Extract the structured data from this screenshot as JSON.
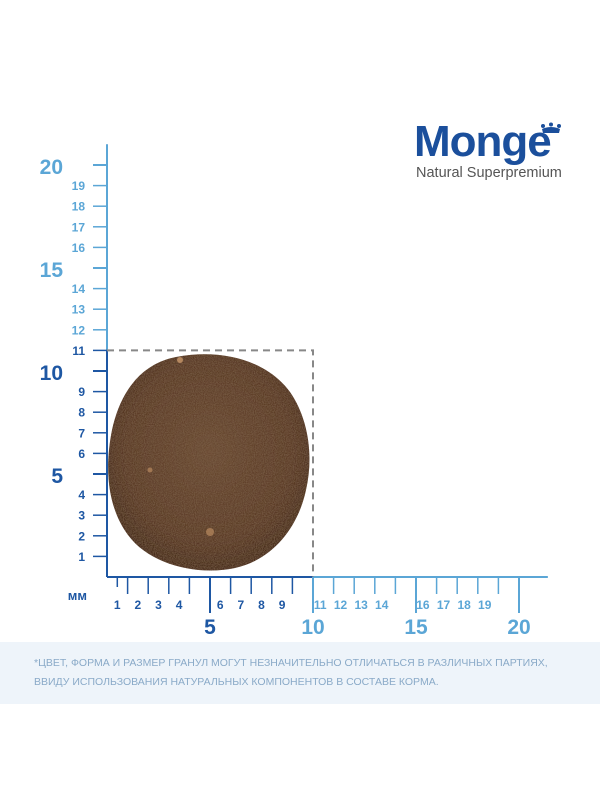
{
  "brand": {
    "name": "Monge",
    "tagline": "Natural Superpremium",
    "color": "#1b4f9c"
  },
  "ruler": {
    "unit_label": "мм",
    "colors": {
      "dark": "#1e57a3",
      "light": "#5ba6d6",
      "kibble": "#5a3a26"
    },
    "y_axis": {
      "small_labels": [
        "1",
        "2",
        "3",
        "4",
        "6",
        "7",
        "8",
        "9",
        "11",
        "12",
        "13",
        "14",
        "16",
        "17",
        "18",
        "19"
      ],
      "big_labels": [
        "5",
        "10",
        "15",
        "20"
      ]
    },
    "x_axis": {
      "small_labels": [
        "1",
        "2",
        "3",
        "4",
        "6",
        "7",
        "8",
        "9",
        "11",
        "12",
        "13",
        "14",
        "16",
        "17",
        "18",
        "19"
      ],
      "big_labels": [
        "5",
        "10",
        "15",
        "20"
      ]
    },
    "kibble_extent_mm": {
      "width": 10,
      "height": 11
    }
  },
  "disclaimer": {
    "text": "*Цвет, форма и размер гранул могут незначительно отличаться в различных партиях, ввиду использования натуральных компонентов в составе корма."
  }
}
